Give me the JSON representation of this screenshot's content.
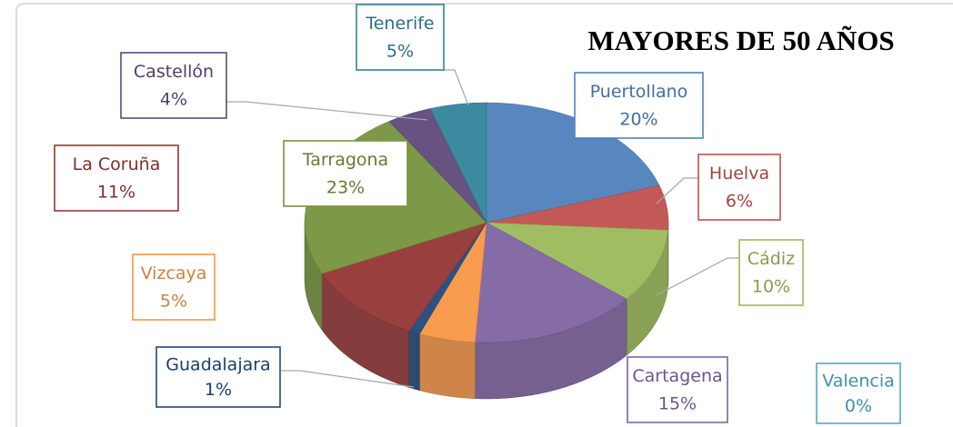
{
  "chart_data": {
    "type": "pie3d",
    "title": "MAYORES DE 50 AÑOS",
    "categories": [
      "Puertollano",
      "Huelva",
      "Cádiz",
      "Valencia",
      "Cartagena",
      "Vizcaya",
      "Guadalajara",
      "La Coruña",
      "Tarragona",
      "Castellón",
      "Tenerife"
    ],
    "values": [
      20,
      6,
      10,
      0,
      15,
      5,
      1,
      11,
      23,
      4,
      5
    ],
    "value_labels": [
      "20%",
      "6%",
      "10%",
      "0%",
      "15%",
      "5%",
      "1%",
      "11%",
      "23%",
      "4%",
      "5%"
    ],
    "colors": [
      "#4f81bd",
      "#c0504d",
      "#9bbb59",
      "#4bacc6",
      "#8064a2",
      "#f79646",
      "#1f497d",
      "#943634",
      "#76923c",
      "#5f497a",
      "#31849b"
    ]
  }
}
